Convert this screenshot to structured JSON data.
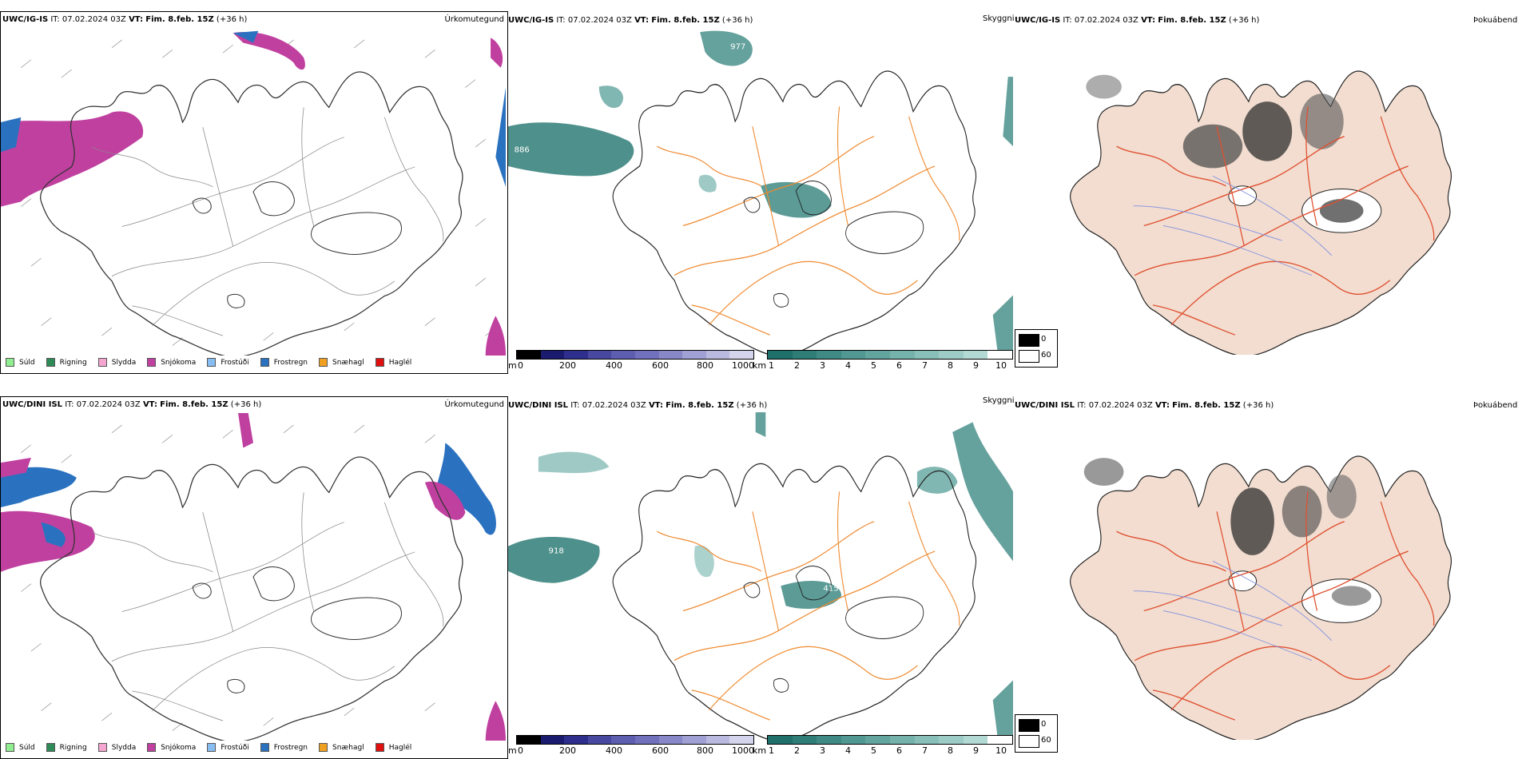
{
  "rows": [
    {
      "model": "UWC/IG-IS",
      "it_label": "IT:",
      "it": "07.02.2024 03Z",
      "vt_label": "VT:",
      "vt": "Fim. 8.feb. 15Z",
      "lead": "(+36 h)"
    },
    {
      "model": "UWC/DINI ISL",
      "it_label": "IT:",
      "it": "07.02.2024 03Z",
      "vt_label": "VT:",
      "vt": "Fim. 8.feb. 15Z",
      "lead": "(+36 h)"
    }
  ],
  "panels": {
    "precip_type": "Úrkomutegund",
    "visibility": "Skyggni",
    "fog": "Þokuábendi"
  },
  "precip_legend": [
    {
      "label": "Súld",
      "color": "#90ee90"
    },
    {
      "label": "Rigning",
      "color": "#2e8b57"
    },
    {
      "label": "Slydda",
      "color": "#f4a6d0"
    },
    {
      "label": "Snjókoma",
      "color": "#c040a0"
    },
    {
      "label": "Frostúði",
      "color": "#87bdf0"
    },
    {
      "label": "Frostregn",
      "color": "#2a72c0"
    },
    {
      "label": "Snæhagl",
      "color": "#f0a020"
    },
    {
      "label": "Haglél",
      "color": "#e01010"
    }
  ],
  "elevation_bar": {
    "unit": "m",
    "ticks": [
      "0",
      "200",
      "400",
      "600",
      "800",
      "1000"
    ],
    "colors": [
      "#000000",
      "#1a1a6e",
      "#2e2e8c",
      "#4848a0",
      "#5e5eb0",
      "#7070bd",
      "#8888c8",
      "#a0a0d4",
      "#babae0",
      "#d4d4ec"
    ]
  },
  "visibility_bar": {
    "unit": "km",
    "ticks": [
      "1",
      "2",
      "3",
      "4",
      "5",
      "6",
      "7",
      "8",
      "9",
      "10"
    ],
    "colors": [
      "#1f6f6a",
      "#2f7d77",
      "#3f8a84",
      "#509891",
      "#62a59f",
      "#75b2ac",
      "#89bfb9",
      "#9dccc7",
      "#b3d9d4",
      "#ffffff"
    ]
  },
  "fog_legend": [
    {
      "label": "0",
      "color": "#000000"
    },
    {
      "label": "60",
      "color": "#ffffff"
    }
  ],
  "map_labels": {
    "row0_vis_a": "977",
    "row0_vis_b": "886",
    "row1_vis_a": "918",
    "row1_vis_b": "415"
  }
}
